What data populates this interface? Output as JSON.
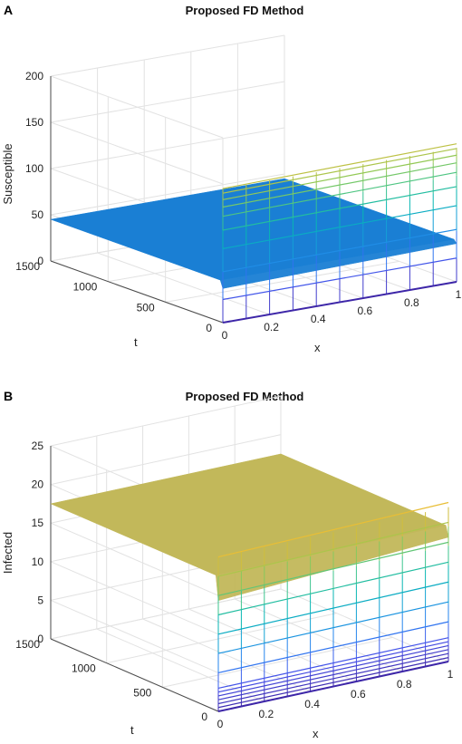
{
  "chart_data": [
    {
      "type": "surface",
      "panel_label": "A",
      "title": "Proposed FD Method",
      "xlabel": "x",
      "ylabel": "t",
      "zlabel": "Susceptible",
      "x_ticks": [
        "0",
        "0.2",
        "0.4",
        "0.6",
        "0.8",
        "1"
      ],
      "t_ticks": [
        "0",
        "500",
        "1000",
        "1500"
      ],
      "z_ticks": [
        "0",
        "50",
        "100",
        "150",
        "200"
      ],
      "xlim": [
        0,
        1
      ],
      "tlim": [
        0,
        1500
      ],
      "zlim": [
        0,
        200
      ],
      "grid": true,
      "steady_value": 45,
      "surface_color": "#1a7fd4",
      "colormap": "parula",
      "initial_profile_levels": [
        0,
        25,
        55,
        80,
        100,
        115,
        125,
        133,
        140,
        145
      ]
    },
    {
      "type": "surface",
      "panel_label": "B",
      "title": "Proposed FD Method",
      "xlabel": "x",
      "ylabel": "t",
      "zlabel": "Infected",
      "x_ticks": [
        "0",
        "0.2",
        "0.4",
        "0.6",
        "0.8",
        "1"
      ],
      "t_ticks": [
        "0",
        "500",
        "1000",
        "1500"
      ],
      "z_ticks": [
        "0",
        "5",
        "10",
        "15",
        "20",
        "25"
      ],
      "xlim": [
        0,
        1
      ],
      "tlim": [
        0,
        1500
      ],
      "zlim": [
        0,
        25
      ],
      "grid": true,
      "steady_value": 17.5,
      "surface_color": "#c2b85a",
      "colormap": "parula",
      "initial_profile_levels": [
        0,
        0.5,
        1,
        1.5,
        2,
        2.5,
        3,
        5,
        7.5,
        10,
        12.5,
        15,
        17.5,
        20
      ]
    }
  ]
}
